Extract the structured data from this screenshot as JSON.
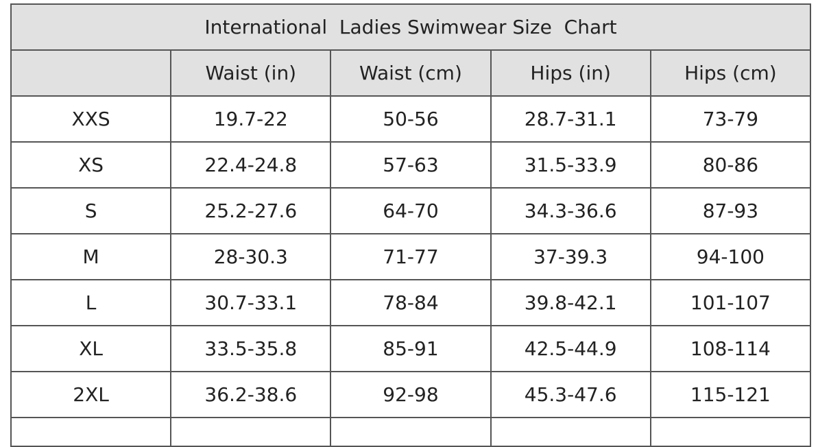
{
  "title": "International  Ladies Swimwear Size  Chart",
  "table": {
    "columns": [
      "Waist (in)",
      "Waist (cm)",
      "Hips (in)",
      "Hips (cm)"
    ],
    "rows": [
      [
        "XXS",
        "19.7-22",
        "50-56",
        "28.7-31.1",
        "73-79"
      ],
      [
        "XS",
        "22.4-24.8",
        "57-63",
        "31.5-33.9",
        "80-86"
      ],
      [
        "S",
        "25.2-27.6",
        "64-70",
        "34.3-36.6",
        "87-93"
      ],
      [
        "M",
        "28-30.3",
        "71-77",
        "37-39.3",
        "94-100"
      ],
      [
        "L",
        "30.7-33.1",
        "78-84",
        "39.8-42.1",
        "101-107"
      ],
      [
        "XL",
        "33.5-35.8",
        "85-91",
        "42.5-44.9",
        "108-114"
      ],
      [
        "2XL",
        "36.2-38.6",
        "92-98",
        "45.3-47.6",
        "115-121"
      ]
    ]
  }
}
